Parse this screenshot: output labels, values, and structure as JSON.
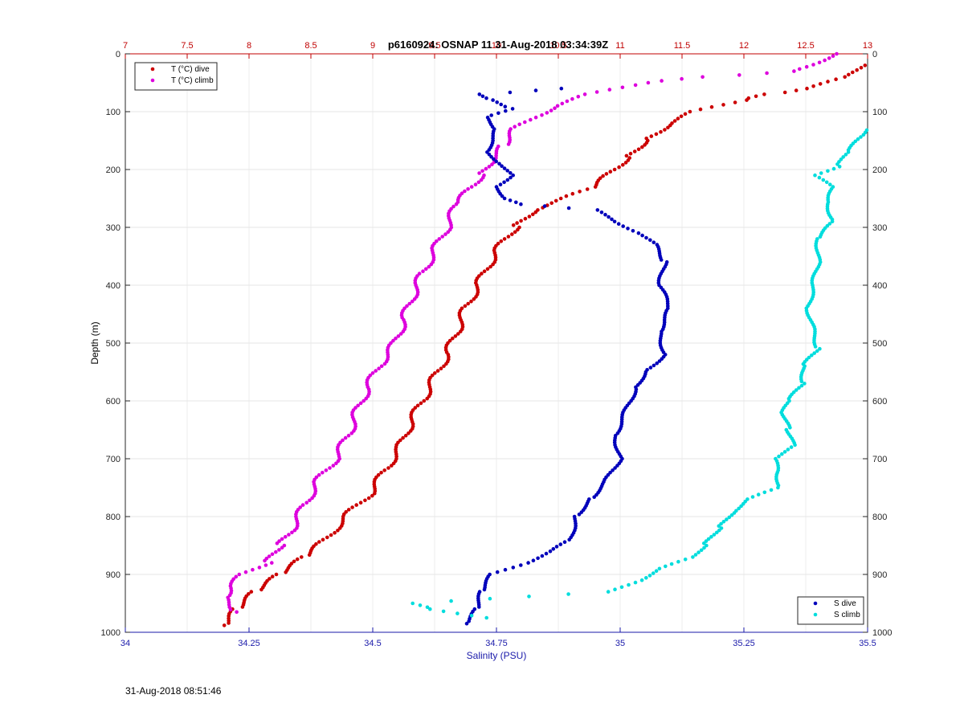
{
  "chart_data": {
    "type": "scatter",
    "title": "p6160924: OSNAP 11 31-Aug-2018 03:34:39Z",
    "xlabel": "Salinity (PSU)",
    "ylabel": "Depth (m)",
    "top_xlabel": "",
    "xlim": [
      34,
      35.5
    ],
    "top_xlim": [
      7,
      13
    ],
    "ylim": [
      0,
      1000
    ],
    "y_reversed": true,
    "grid": true,
    "x_ticks": [
      "34",
      "34.25",
      "34.5",
      "34.75",
      "35",
      "35.25",
      "35.5"
    ],
    "top_x_ticks": [
      "7",
      "7.5",
      "8",
      "8.5",
      "9",
      "9.5",
      "10",
      "10.5",
      "11",
      "11.5",
      "12",
      "12.5",
      "13"
    ],
    "y_ticks": [
      "0",
      "100",
      "200",
      "300",
      "400",
      "500",
      "600",
      "700",
      "800",
      "900",
      "1000"
    ],
    "legend_temperature_position": "top-left",
    "legend_salinity_position": "bottom-right",
    "series": [
      {
        "name": "T (°C) dive",
        "axis": "top",
        "color": "#cc0000",
        "profile": [
          [
            988,
            7.8
          ],
          [
            960,
            7.9
          ],
          [
            930,
            8.05
          ],
          [
            900,
            8.25
          ],
          [
            870,
            8.45
          ],
          [
            840,
            8.62
          ],
          [
            800,
            8.78
          ],
          [
            760,
            8.98
          ],
          [
            720,
            9.1
          ],
          [
            680,
            9.22
          ],
          [
            640,
            9.3
          ],
          [
            600,
            9.4
          ],
          [
            560,
            9.5
          ],
          [
            520,
            9.6
          ],
          [
            480,
            9.68
          ],
          [
            440,
            9.75
          ],
          [
            400,
            9.85
          ],
          [
            360,
            9.95
          ],
          [
            340,
            10.0
          ],
          [
            320,
            10.08
          ],
          [
            300,
            10.15
          ],
          [
            270,
            10.3
          ],
          [
            250,
            10.55
          ],
          [
            230,
            10.8
          ],
          [
            200,
            10.95
          ],
          [
            180,
            11.05
          ],
          [
            150,
            11.2
          ],
          [
            120,
            11.4
          ],
          [
            100,
            11.6
          ],
          [
            80,
            12.0
          ],
          [
            70,
            12.2
          ],
          [
            60,
            12.5
          ],
          [
            40,
            12.85
          ],
          [
            20,
            12.95
          ]
        ]
      },
      {
        "name": "T (°C) climb",
        "axis": "top",
        "color": "#dd00dd",
        "profile": [
          [
            965,
            7.9
          ],
          [
            940,
            7.8
          ],
          [
            920,
            7.85
          ],
          [
            900,
            7.95
          ],
          [
            880,
            8.15
          ],
          [
            850,
            8.25
          ],
          [
            820,
            8.35
          ],
          [
            780,
            8.45
          ],
          [
            740,
            8.55
          ],
          [
            700,
            8.7
          ],
          [
            660,
            8.8
          ],
          [
            620,
            8.87
          ],
          [
            580,
            8.95
          ],
          [
            540,
            9.05
          ],
          [
            500,
            9.18
          ],
          [
            460,
            9.25
          ],
          [
            420,
            9.32
          ],
          [
            380,
            9.4
          ],
          [
            340,
            9.5
          ],
          [
            300,
            9.6
          ],
          [
            260,
            9.68
          ],
          [
            230,
            9.8
          ],
          [
            210,
            9.87
          ],
          [
            180,
            9.97
          ],
          [
            160,
            10.05
          ],
          [
            130,
            10.15
          ],
          [
            110,
            10.3
          ],
          [
            90,
            10.48
          ],
          [
            70,
            10.75
          ],
          [
            50,
            11.2
          ],
          [
            40,
            11.7
          ],
          [
            30,
            12.4
          ],
          [
            0,
            12.75
          ]
        ]
      },
      {
        "name": "S dive",
        "axis": "bottom",
        "color": "#0000bb",
        "profile": [
          [
            985,
            34.69
          ],
          [
            960,
            34.71
          ],
          [
            930,
            34.72
          ],
          [
            900,
            34.74
          ],
          [
            880,
            34.81
          ],
          [
            860,
            34.86
          ],
          [
            840,
            34.9
          ],
          [
            800,
            34.91
          ],
          [
            770,
            34.94
          ],
          [
            740,
            34.97
          ],
          [
            700,
            35.0
          ],
          [
            660,
            34.99
          ],
          [
            620,
            35.01
          ],
          [
            580,
            35.03
          ],
          [
            550,
            35.05
          ],
          [
            520,
            35.09
          ],
          [
            480,
            35.08
          ],
          [
            440,
            35.1
          ],
          [
            400,
            35.08
          ],
          [
            360,
            35.09
          ],
          [
            330,
            35.07
          ],
          [
            310,
            35.04
          ],
          [
            290,
            34.99
          ],
          [
            270,
            34.95
          ],
          [
            260,
            34.8
          ],
          [
            250,
            34.77
          ],
          [
            230,
            34.75
          ],
          [
            210,
            34.78
          ],
          [
            190,
            34.76
          ],
          [
            170,
            34.73
          ],
          [
            150,
            34.74
          ],
          [
            130,
            34.75
          ],
          [
            110,
            34.73
          ],
          [
            95,
            34.78
          ],
          [
            80,
            34.74
          ],
          [
            70,
            34.72
          ],
          [
            60,
            34.88
          ]
        ]
      },
      {
        "name": "S climb",
        "axis": "bottom",
        "color": "#00dddd",
        "profile": [
          [
            975,
            34.73
          ],
          [
            960,
            34.62
          ],
          [
            950,
            34.58
          ],
          [
            930,
            34.98
          ],
          [
            910,
            35.04
          ],
          [
            890,
            35.08
          ],
          [
            870,
            35.15
          ],
          [
            850,
            35.17
          ],
          [
            820,
            35.2
          ],
          [
            790,
            35.23
          ],
          [
            770,
            35.26
          ],
          [
            750,
            35.32
          ],
          [
            720,
            35.32
          ],
          [
            700,
            35.31
          ],
          [
            680,
            35.35
          ],
          [
            650,
            35.34
          ],
          [
            620,
            35.33
          ],
          [
            600,
            35.34
          ],
          [
            570,
            35.37
          ],
          [
            540,
            35.37
          ],
          [
            510,
            35.4
          ],
          [
            480,
            35.39
          ],
          [
            440,
            35.38
          ],
          [
            400,
            35.39
          ],
          [
            360,
            35.4
          ],
          [
            320,
            35.4
          ],
          [
            290,
            35.43
          ],
          [
            260,
            35.42
          ],
          [
            230,
            35.43
          ],
          [
            210,
            35.39
          ],
          [
            195,
            35.44
          ],
          [
            170,
            35.46
          ],
          [
            140,
            35.49
          ],
          [
            120,
            35.5
          ]
        ]
      }
    ]
  },
  "footer": {
    "timestamp": "31-Aug-2018 08:51:46"
  }
}
